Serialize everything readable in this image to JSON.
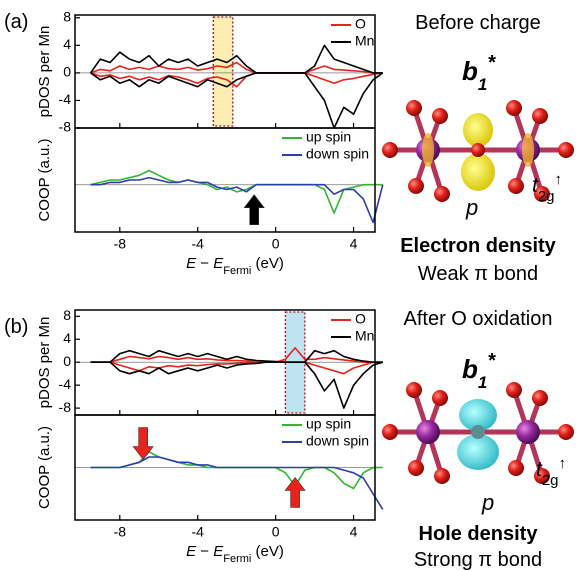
{
  "panels": [
    {
      "label": "(a)",
      "header": "Before charge",
      "orbital": [
        "b",
        "1",
        "*"
      ],
      "p": "p",
      "t2g": [
        "t",
        "2g",
        "↑"
      ],
      "density": "Electron density",
      "bond": "Weak π bond"
    },
    {
      "label": "(b)",
      "header": "After O oxidation",
      "orbital": [
        "b",
        "1",
        "*"
      ],
      "p": "p",
      "t2g": [
        "t",
        "2g",
        "↑"
      ],
      "density": "Hole density",
      "bond": "Strong π bond"
    }
  ],
  "chart_data": [
    {
      "type": "line",
      "ylabel": "pDOS per Mn",
      "xlim": [
        -10.3,
        5.1
      ],
      "xticks": [
        -8,
        -4,
        0,
        4
      ],
      "show_xtick_labels": false,
      "ylim": [
        -8.0,
        8.4
      ],
      "yticks": [
        8,
        4,
        0,
        -4,
        -8
      ],
      "legend": "upper right",
      "highlight": {
        "range": [
          -3.2,
          -2.2
        ],
        "fill": "#fbeeb0"
      },
      "x": [
        -9.5,
        -9,
        -8.5,
        -8,
        -7.5,
        -7,
        -6.5,
        -6,
        -5.5,
        -5,
        -4.5,
        -4,
        -3.5,
        -3,
        -2.5,
        -2,
        -1.5,
        -1,
        -0.5,
        0,
        0.5,
        1,
        1.5,
        2,
        2.5,
        3,
        3.5,
        4,
        4.5,
        5,
        5.5
      ],
      "series": [
        {
          "name": "O",
          "color": "#e8231d",
          "up": [
            0,
            0.5,
            0.3,
            1,
            0.5,
            0.8,
            0.5,
            1,
            0.6,
            0.5,
            0.8,
            0.4,
            0.6,
            1,
            0.8,
            1.5,
            0.5,
            0,
            0,
            0,
            0,
            0,
            0,
            0.5,
            1,
            0.5,
            0.4,
            0.3,
            0.2,
            0,
            0
          ],
          "down": [
            0,
            -0.5,
            -0.3,
            -0.8,
            -0.5,
            -1,
            -0.6,
            -1,
            -0.4,
            -0.6,
            -1,
            -1.5,
            -0.8,
            -0.6,
            -1,
            -2,
            -0.5,
            0,
            0,
            0,
            0,
            0,
            0,
            -0.5,
            -1,
            -1.5,
            -1,
            -0.8,
            -0.5,
            -0.2,
            0
          ]
        },
        {
          "name": "Mn",
          "color": "#000000",
          "up": [
            0,
            2,
            1.5,
            3,
            2,
            1.5,
            2.5,
            1,
            2,
            1.5,
            2,
            1,
            1.5,
            2,
            1.5,
            2.5,
            1,
            0,
            0,
            0,
            0,
            0,
            0,
            1,
            4,
            2,
            1.5,
            1,
            0.5,
            0,
            0
          ],
          "down": [
            0,
            -1,
            -0.5,
            -1.5,
            -1,
            -2,
            -1,
            -1.5,
            -0.5,
            -1,
            -1.5,
            -2,
            -1,
            -1.5,
            -2,
            -1,
            -0.5,
            0,
            0,
            0,
            0,
            0,
            0,
            -2,
            -4,
            -8,
            -5,
            -6,
            -3,
            -1,
            0
          ]
        }
      ]
    },
    {
      "type": "line",
      "ylabel": "COOP (a.u.)",
      "xlabel": [
        "E",
        " − ",
        "E",
        "Fermi",
        " (eV)"
      ],
      "xlim": [
        -10.3,
        5.1
      ],
      "xticks": [
        -8,
        -4,
        0,
        4
      ],
      "show_xtick_labels": true,
      "ylim": [
        -1,
        1.2
      ],
      "legend": "upper right",
      "arrows": [
        {
          "x": -1.1,
          "direction": "up",
          "color": "#000000"
        }
      ],
      "x": [
        -9.5,
        -9,
        -8.5,
        -8,
        -7.5,
        -7,
        -6.5,
        -6,
        -5.5,
        -5,
        -4.5,
        -4,
        -3.5,
        -3,
        -2.5,
        -2,
        -1.5,
        -1,
        -0.5,
        0,
        0.5,
        1,
        1.5,
        2,
        2.5,
        3,
        3.5,
        4,
        4.5,
        5,
        5.5
      ],
      "series": [
        {
          "name": "up spin",
          "color": "#2db82d",
          "values": [
            0,
            0.05,
            0.1,
            0.1,
            0.15,
            0.2,
            0.3,
            0.2,
            0.1,
            0.05,
            0.1,
            0.05,
            0,
            -0.1,
            -0.05,
            -0.15,
            -0.1,
            0,
            0,
            0,
            0,
            0,
            0,
            0,
            -0.1,
            -0.6,
            -0.1,
            -0.05,
            0,
            0,
            0
          ]
        },
        {
          "name": "down spin",
          "color": "#2a3fb0",
          "values": [
            0,
            0,
            0.05,
            0.05,
            0.1,
            0.1,
            0.15,
            0.1,
            0.05,
            0.05,
            0.1,
            0.05,
            0.05,
            -0.05,
            -0.1,
            -0.05,
            -0.15,
            0,
            0,
            0,
            0,
            0,
            0,
            0,
            0,
            -0.2,
            -0.1,
            -0.1,
            -0.3,
            -0.8,
            0
          ]
        }
      ]
    },
    {
      "type": "line",
      "ylabel": "pDOS per Mn",
      "xlim": [
        -10.3,
        5.1
      ],
      "xticks": [
        -8,
        -4,
        0,
        4
      ],
      "show_xtick_labels": false,
      "ylim": [
        -9.2,
        9.1
      ],
      "yticks": [
        8,
        4,
        0,
        -4,
        -8
      ],
      "legend": "upper right",
      "highlight": {
        "range": [
          0.5,
          1.5
        ],
        "fill": "#bfe3f0"
      },
      "x": [
        -9.5,
        -9,
        -8.5,
        -8,
        -7.5,
        -7,
        -6.5,
        -6,
        -5.5,
        -5,
        -4.5,
        -4,
        -3.5,
        -3,
        -2.5,
        -2,
        -1.5,
        -1,
        -0.5,
        0,
        0.5,
        1,
        1.5,
        2,
        2.5,
        3,
        3.5,
        4,
        4.5,
        5,
        5.5
      ],
      "series": [
        {
          "name": "O",
          "color": "#e8231d",
          "up": [
            0,
            0,
            0,
            0.5,
            1,
            0.8,
            0.6,
            1,
            0.8,
            0.5,
            0.8,
            0.5,
            0.6,
            0.4,
            0.3,
            0.3,
            0.2,
            0,
            0,
            0,
            0.5,
            2.5,
            0.5,
            0.5,
            0.8,
            0.6,
            0.4,
            0.2,
            0,
            0,
            0
          ],
          "down": [
            0,
            0,
            0,
            -0.5,
            -1,
            -1.5,
            -0.8,
            -1,
            -0.6,
            -0.8,
            -0.5,
            -0.6,
            -0.4,
            -0.3,
            -0.3,
            -0.2,
            -0.1,
            0,
            0,
            0,
            0,
            0,
            0,
            -0.5,
            -1,
            -1.5,
            -2,
            -1,
            -0.5,
            0,
            0
          ]
        },
        {
          "name": "Mn",
          "color": "#000000",
          "up": [
            0,
            0,
            0,
            1.5,
            2,
            1.5,
            1,
            2,
            1.5,
            1,
            1.5,
            1,
            1.5,
            1,
            0.5,
            1,
            0.5,
            0.3,
            0.2,
            0.1,
            0,
            0,
            0,
            2,
            1.5,
            2,
            1,
            0.5,
            0.2,
            0,
            0
          ],
          "down": [
            0,
            0,
            0,
            -1.5,
            -2,
            -1.5,
            -2,
            -1,
            -2,
            -1.5,
            -1,
            -1.5,
            -1,
            -0.5,
            -1,
            -0.5,
            -0.3,
            -0.2,
            0,
            0,
            0,
            0,
            0,
            -2,
            -5,
            -3,
            -8,
            -4,
            -2,
            -0.5,
            0
          ]
        }
      ]
    },
    {
      "type": "line",
      "ylabel": "COOP (a.u.)",
      "xlabel": [
        "E",
        " − ",
        "E",
        "Fermi",
        " (eV)"
      ],
      "xlim": [
        -10.3,
        5.1
      ],
      "xticks": [
        -8,
        -4,
        0,
        4
      ],
      "show_xtick_labels": true,
      "ylim": [
        -1,
        1
      ],
      "legend": "upper right",
      "arrows": [
        {
          "x": -6.8,
          "direction": "down",
          "color": "#e8231d"
        },
        {
          "x": 1.0,
          "direction": "up",
          "color": "#e8231d"
        }
      ],
      "x": [
        -9.5,
        -9,
        -8.5,
        -8,
        -7.5,
        -7,
        -6.5,
        -6,
        -5.5,
        -5,
        -4.5,
        -4,
        -3.5,
        -3,
        -2.5,
        -2,
        -1.5,
        -1,
        -0.5,
        0,
        0.5,
        1,
        1.5,
        2,
        2.5,
        3,
        3.5,
        4,
        4.5,
        5,
        5.5
      ],
      "series": [
        {
          "name": "up spin",
          "color": "#2db82d",
          "values": [
            0,
            0,
            0,
            0,
            0.05,
            0.1,
            0.3,
            0.2,
            0.15,
            0.1,
            0.05,
            0.05,
            0,
            0,
            0,
            0,
            0,
            0,
            0,
            0,
            -0.1,
            -0.35,
            -0.05,
            0,
            0,
            -0.1,
            -0.3,
            -0.4,
            -0.1,
            0,
            0
          ]
        },
        {
          "name": "down spin",
          "color": "#2a3fb0",
          "values": [
            0,
            0,
            0,
            0,
            0.05,
            0.1,
            0.2,
            0.2,
            0.15,
            0.1,
            0.1,
            0.05,
            0.05,
            0,
            0,
            0,
            0,
            0,
            0,
            0,
            0,
            0,
            0,
            0,
            0,
            0,
            -0.05,
            -0.1,
            -0.2,
            -0.5,
            -0.8
          ]
        }
      ]
    }
  ]
}
